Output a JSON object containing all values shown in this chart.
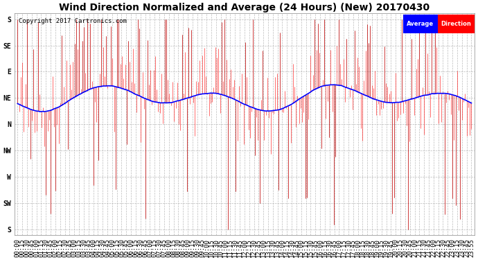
{
  "title": "Wind Direction Normalized and Average (24 Hours) (New) 20170430",
  "copyright": "Copyright 2017 Cartronics.com",
  "background_color": "#ffffff",
  "plot_bg_color": "#ffffff",
  "grid_color": "#aaaaaa",
  "ytick_labels": [
    "S",
    "SE",
    "E",
    "NE",
    "N",
    "NW",
    "W",
    "SW",
    "S"
  ],
  "ytick_values": [
    0,
    45,
    90,
    135,
    180,
    225,
    270,
    315,
    360
  ],
  "ylim": [
    370,
    -10
  ],
  "num_points": 288,
  "avg_color": "#0000ff",
  "dir_color": "#ff0000",
  "dark_color": "#222222",
  "legend_avg_bg": "#0000ff",
  "legend_dir_bg": "#ff0000",
  "legend_text_color": "#ffffff",
  "title_fontsize": 10,
  "tick_fontsize": 7
}
